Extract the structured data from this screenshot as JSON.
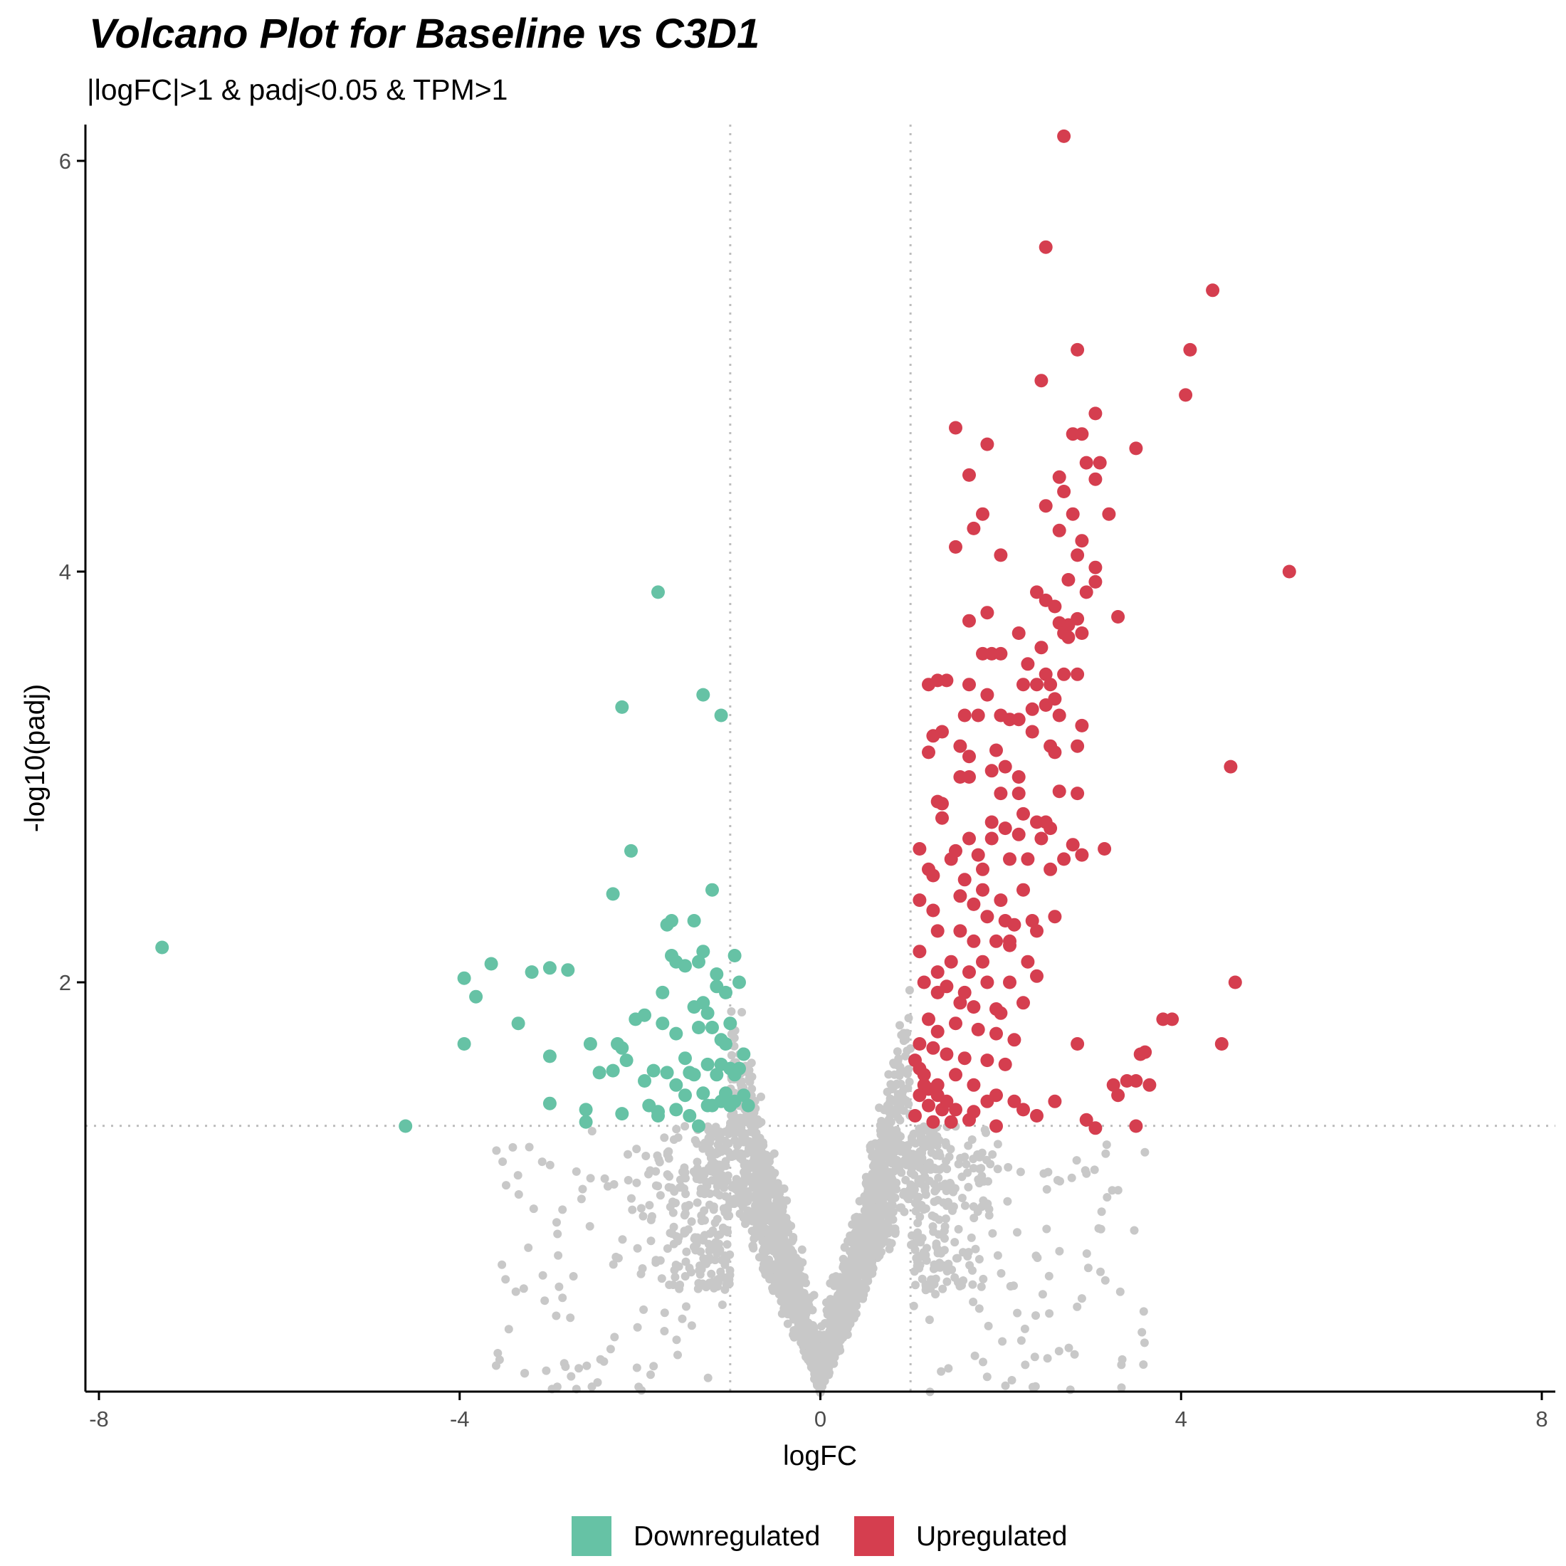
{
  "chart_data": {
    "type": "scatter",
    "title": "Volcano Plot for Baseline vs C3D1",
    "subtitle": "|logFC|>1 & padj<0.05 & TPM>1",
    "xlabel": "logFC",
    "ylabel": "-log10(padj)",
    "xlim": [
      -8.1,
      8.1
    ],
    "ylim": [
      0,
      6.15
    ],
    "xticks": [
      -8,
      -4,
      0,
      4,
      8
    ],
    "yticks": [
      2,
      4,
      6
    ],
    "thresholds": {
      "logFC": [
        -1,
        1
      ],
      "neg_log10_padj": 1.301
    },
    "grid": false,
    "legend_position": "bottom",
    "colors": {
      "Downregulated": "#66c2a5",
      "Upregulated": "#d53e4f",
      "NotSignificant": "#c8c8c8"
    },
    "series": [
      {
        "name": "Downregulated",
        "color": "#66c2a5",
        "points": [
          [
            -7.3,
            2.17
          ],
          [
            -4.6,
            1.3
          ],
          [
            -3.95,
            2.02
          ],
          [
            -3.95,
            1.7
          ],
          [
            -3.82,
            1.93
          ],
          [
            -3.65,
            2.09
          ],
          [
            -3.35,
            1.8
          ],
          [
            -3.2,
            2.05
          ],
          [
            -3.0,
            2.07
          ],
          [
            -2.8,
            2.06
          ],
          [
            -3.0,
            1.64
          ],
          [
            -3.0,
            1.41
          ],
          [
            -2.55,
            1.7
          ],
          [
            -2.6,
            1.38
          ],
          [
            -2.6,
            1.32
          ],
          [
            -2.45,
            1.56
          ],
          [
            -2.3,
            1.57
          ],
          [
            -2.25,
            1.7
          ],
          [
            -2.2,
            1.68
          ],
          [
            -2.2,
            1.36
          ],
          [
            -2.15,
            1.62
          ],
          [
            -2.05,
            1.82
          ],
          [
            -1.95,
            1.84
          ],
          [
            -1.95,
            1.52
          ],
          [
            -1.9,
            1.4
          ],
          [
            -1.85,
            1.57
          ],
          [
            -1.8,
            1.35
          ],
          [
            -1.8,
            1.37
          ],
          [
            -1.75,
            1.95
          ],
          [
            -1.75,
            1.8
          ],
          [
            -1.7,
            1.56
          ],
          [
            -1.7,
            2.28
          ],
          [
            -1.65,
            2.3
          ],
          [
            -1.65,
            2.13
          ],
          [
            -1.6,
            2.1
          ],
          [
            -1.6,
            1.75
          ],
          [
            -1.6,
            1.5
          ],
          [
            -1.5,
            2.08
          ],
          [
            -1.5,
            1.63
          ],
          [
            -1.45,
            1.56
          ],
          [
            -1.45,
            1.35
          ],
          [
            -1.4,
            2.3
          ],
          [
            -1.4,
            1.88
          ],
          [
            -1.4,
            1.55
          ],
          [
            -1.35,
            2.1
          ],
          [
            -1.35,
            1.78
          ],
          [
            -1.35,
            1.3
          ],
          [
            -1.3,
            2.15
          ],
          [
            -1.3,
            1.9
          ],
          [
            -1.3,
            1.46
          ],
          [
            -1.25,
            1.85
          ],
          [
            -1.25,
            1.6
          ],
          [
            -1.2,
            1.78
          ],
          [
            -1.2,
            1.4
          ],
          [
            -1.15,
            1.98
          ],
          [
            -1.15,
            2.04
          ],
          [
            -1.15,
            1.55
          ],
          [
            -1.1,
            1.72
          ],
          [
            -1.1,
            1.6
          ],
          [
            -1.1,
            1.42
          ],
          [
            -1.05,
            1.95
          ],
          [
            -1.05,
            1.7
          ],
          [
            -1.05,
            1.46
          ],
          [
            -1.0,
            1.8
          ],
          [
            -1.0,
            1.58
          ],
          [
            -1.0,
            1.4
          ],
          [
            -0.95,
            2.13
          ],
          [
            -0.95,
            1.55
          ],
          [
            -0.95,
            1.42
          ],
          [
            -0.9,
            2.0
          ],
          [
            -0.9,
            1.58
          ],
          [
            -0.85,
            1.45
          ],
          [
            -0.85,
            1.65
          ],
          [
            -0.8,
            1.4
          ],
          [
            -1.5,
            1.45
          ],
          [
            -1.25,
            1.4
          ],
          [
            -1.6,
            1.38
          ],
          [
            -1.8,
            3.9
          ],
          [
            -2.2,
            3.34
          ],
          [
            -1.3,
            3.4
          ],
          [
            -1.1,
            3.3
          ],
          [
            -2.1,
            2.64
          ],
          [
            -2.3,
            2.43
          ],
          [
            -1.2,
            2.45
          ]
        ]
      },
      {
        "name": "Upregulated",
        "color": "#d53e4f",
        "points": [
          [
            2.7,
            6.12
          ],
          [
            2.5,
            5.58
          ],
          [
            4.35,
            5.37
          ],
          [
            2.85,
            5.08
          ],
          [
            4.1,
            5.08
          ],
          [
            2.45,
            4.93
          ],
          [
            4.05,
            4.86
          ],
          [
            3.05,
            4.77
          ],
          [
            1.5,
            4.7
          ],
          [
            1.85,
            4.62
          ],
          [
            2.8,
            4.67
          ],
          [
            2.9,
            4.67
          ],
          [
            3.5,
            4.6
          ],
          [
            2.95,
            4.53
          ],
          [
            3.1,
            4.53
          ],
          [
            1.65,
            4.47
          ],
          [
            2.65,
            4.46
          ],
          [
            3.05,
            4.45
          ],
          [
            2.7,
            4.39
          ],
          [
            2.5,
            4.32
          ],
          [
            1.8,
            4.28
          ],
          [
            1.7,
            4.21
          ],
          [
            2.8,
            4.28
          ],
          [
            3.2,
            4.28
          ],
          [
            2.65,
            4.2
          ],
          [
            2.9,
            4.15
          ],
          [
            1.5,
            4.12
          ],
          [
            2.0,
            4.08
          ],
          [
            2.85,
            4.08
          ],
          [
            2.75,
            3.96
          ],
          [
            3.05,
            4.02
          ],
          [
            3.05,
            3.95
          ],
          [
            2.95,
            3.9
          ],
          [
            2.4,
            3.9
          ],
          [
            2.5,
            3.86
          ],
          [
            2.6,
            3.83
          ],
          [
            1.85,
            3.8
          ],
          [
            1.65,
            3.76
          ],
          [
            2.65,
            3.75
          ],
          [
            2.75,
            3.74
          ],
          [
            2.85,
            3.77
          ],
          [
            3.3,
            3.78
          ],
          [
            2.7,
            3.7
          ],
          [
            2.9,
            3.7
          ],
          [
            2.75,
            3.68
          ],
          [
            2.2,
            3.7
          ],
          [
            2.45,
            3.63
          ],
          [
            1.8,
            3.6
          ],
          [
            1.9,
            3.6
          ],
          [
            2.0,
            3.6
          ],
          [
            2.3,
            3.55
          ],
          [
            2.5,
            3.5
          ],
          [
            2.7,
            3.5
          ],
          [
            2.85,
            3.5
          ],
          [
            2.4,
            3.45
          ],
          [
            2.55,
            3.45
          ],
          [
            1.2,
            3.45
          ],
          [
            1.3,
            3.47
          ],
          [
            1.4,
            3.47
          ],
          [
            1.65,
            3.45
          ],
          [
            2.25,
            3.45
          ],
          [
            2.6,
            3.38
          ],
          [
            2.5,
            3.35
          ],
          [
            2.35,
            3.33
          ],
          [
            1.85,
            3.4
          ],
          [
            2.0,
            3.3
          ],
          [
            2.1,
            3.28
          ],
          [
            1.6,
            3.3
          ],
          [
            1.75,
            3.3
          ],
          [
            2.65,
            3.3
          ],
          [
            2.9,
            3.25
          ],
          [
            2.2,
            3.28
          ],
          [
            2.35,
            3.22
          ],
          [
            1.25,
            3.2
          ],
          [
            1.35,
            3.22
          ],
          [
            1.55,
            3.15
          ],
          [
            1.2,
            3.12
          ],
          [
            1.65,
            3.1
          ],
          [
            1.95,
            3.13
          ],
          [
            2.55,
            3.15
          ],
          [
            2.6,
            3.12
          ],
          [
            2.85,
            3.15
          ],
          [
            1.9,
            3.03
          ],
          [
            2.05,
            3.05
          ],
          [
            2.2,
            3.0
          ],
          [
            1.65,
            3.0
          ],
          [
            1.55,
            3.0
          ],
          [
            2.2,
            2.92
          ],
          [
            2.0,
            2.92
          ],
          [
            2.65,
            2.93
          ],
          [
            2.85,
            2.92
          ],
          [
            1.3,
            2.88
          ],
          [
            1.35,
            2.87
          ],
          [
            2.25,
            2.82
          ],
          [
            2.4,
            2.78
          ],
          [
            2.5,
            2.78
          ],
          [
            2.55,
            2.75
          ],
          [
            1.35,
            2.8
          ],
          [
            1.9,
            2.78
          ],
          [
            2.05,
            2.75
          ],
          [
            2.45,
            2.7
          ],
          [
            2.2,
            2.72
          ],
          [
            1.9,
            2.7
          ],
          [
            2.8,
            2.67
          ],
          [
            2.9,
            2.62
          ],
          [
            1.5,
            2.64
          ],
          [
            1.75,
            2.62
          ],
          [
            2.1,
            2.6
          ],
          [
            2.3,
            2.6
          ],
          [
            1.25,
            2.52
          ],
          [
            1.6,
            2.5
          ],
          [
            1.8,
            2.45
          ],
          [
            2.7,
            2.6
          ],
          [
            3.15,
            2.65
          ],
          [
            2.55,
            2.55
          ],
          [
            1.1,
            2.4
          ],
          [
            1.25,
            2.35
          ],
          [
            1.55,
            2.42
          ],
          [
            1.85,
            2.32
          ],
          [
            2.05,
            2.3
          ],
          [
            2.15,
            2.28
          ],
          [
            2.6,
            2.32
          ],
          [
            1.3,
            2.25
          ],
          [
            1.7,
            2.2
          ],
          [
            1.95,
            2.2
          ],
          [
            2.1,
            2.18
          ],
          [
            2.4,
            2.25
          ],
          [
            1.1,
            2.15
          ],
          [
            1.45,
            2.1
          ],
          [
            1.65,
            2.05
          ],
          [
            1.85,
            2.0
          ],
          [
            2.1,
            2.0
          ],
          [
            2.4,
            2.03
          ],
          [
            1.15,
            2.0
          ],
          [
            1.3,
            1.95
          ],
          [
            1.55,
            1.9
          ],
          [
            1.7,
            1.88
          ],
          [
            1.95,
            1.87
          ],
          [
            2.0,
            1.85
          ],
          [
            1.2,
            1.82
          ],
          [
            1.3,
            1.76
          ],
          [
            1.5,
            1.8
          ],
          [
            1.75,
            1.77
          ],
          [
            1.95,
            1.75
          ],
          [
            2.15,
            1.72
          ],
          [
            1.1,
            1.7
          ],
          [
            1.25,
            1.68
          ],
          [
            1.4,
            1.65
          ],
          [
            1.6,
            1.63
          ],
          [
            1.85,
            1.62
          ],
          [
            2.05,
            1.6
          ],
          [
            1.15,
            1.55
          ],
          [
            1.3,
            1.5
          ],
          [
            1.5,
            1.55
          ],
          [
            1.7,
            1.5
          ],
          [
            1.95,
            1.45
          ],
          [
            2.15,
            1.42
          ],
          [
            1.1,
            1.45
          ],
          [
            1.2,
            1.4
          ],
          [
            1.35,
            1.38
          ],
          [
            1.5,
            1.38
          ],
          [
            1.7,
            1.37
          ],
          [
            1.85,
            1.42
          ],
          [
            1.05,
            1.35
          ],
          [
            1.25,
            1.32
          ],
          [
            1.45,
            1.32
          ],
          [
            1.65,
            1.33
          ],
          [
            1.95,
            1.3
          ],
          [
            2.25,
            1.38
          ],
          [
            1.05,
            1.62
          ],
          [
            1.1,
            1.58
          ],
          [
            1.15,
            1.5
          ],
          [
            1.2,
            1.48
          ],
          [
            1.3,
            1.45
          ],
          [
            1.4,
            1.42
          ],
          [
            2.4,
            1.35
          ],
          [
            2.6,
            1.42
          ],
          [
            2.85,
            1.7
          ],
          [
            3.65,
            1.5
          ],
          [
            3.8,
            1.82
          ],
          [
            4.45,
            1.7
          ],
          [
            4.6,
            2.0
          ],
          [
            3.9,
            1.82
          ],
          [
            3.4,
            1.52
          ],
          [
            3.5,
            1.52
          ],
          [
            3.55,
            1.65
          ],
          [
            3.6,
            1.66
          ],
          [
            3.25,
            1.5
          ],
          [
            3.3,
            1.45
          ],
          [
            3.5,
            1.3
          ],
          [
            3.05,
            1.29
          ],
          [
            2.95,
            1.33
          ],
          [
            4.55,
            3.05
          ],
          [
            5.2,
            4.0
          ],
          [
            2.3,
            2.1
          ],
          [
            2.1,
            2.2
          ],
          [
            1.8,
            2.1
          ],
          [
            1.55,
            2.25
          ],
          [
            1.3,
            2.05
          ],
          [
            1.4,
            1.98
          ],
          [
            1.6,
            1.95
          ],
          [
            2.25,
            1.9
          ],
          [
            2.35,
            2.3
          ],
          [
            1.45,
            2.6
          ],
          [
            1.65,
            2.7
          ],
          [
            1.1,
            2.65
          ],
          [
            1.2,
            2.55
          ],
          [
            2.0,
            2.4
          ],
          [
            1.8,
            2.55
          ],
          [
            2.25,
            2.45
          ],
          [
            1.7,
            2.38
          ]
        ]
      }
    ]
  },
  "legend": {
    "items": [
      {
        "label": "Downregulated",
        "color": "#66c2a5"
      },
      {
        "label": "Upregulated",
        "color": "#d53e4f"
      }
    ]
  }
}
